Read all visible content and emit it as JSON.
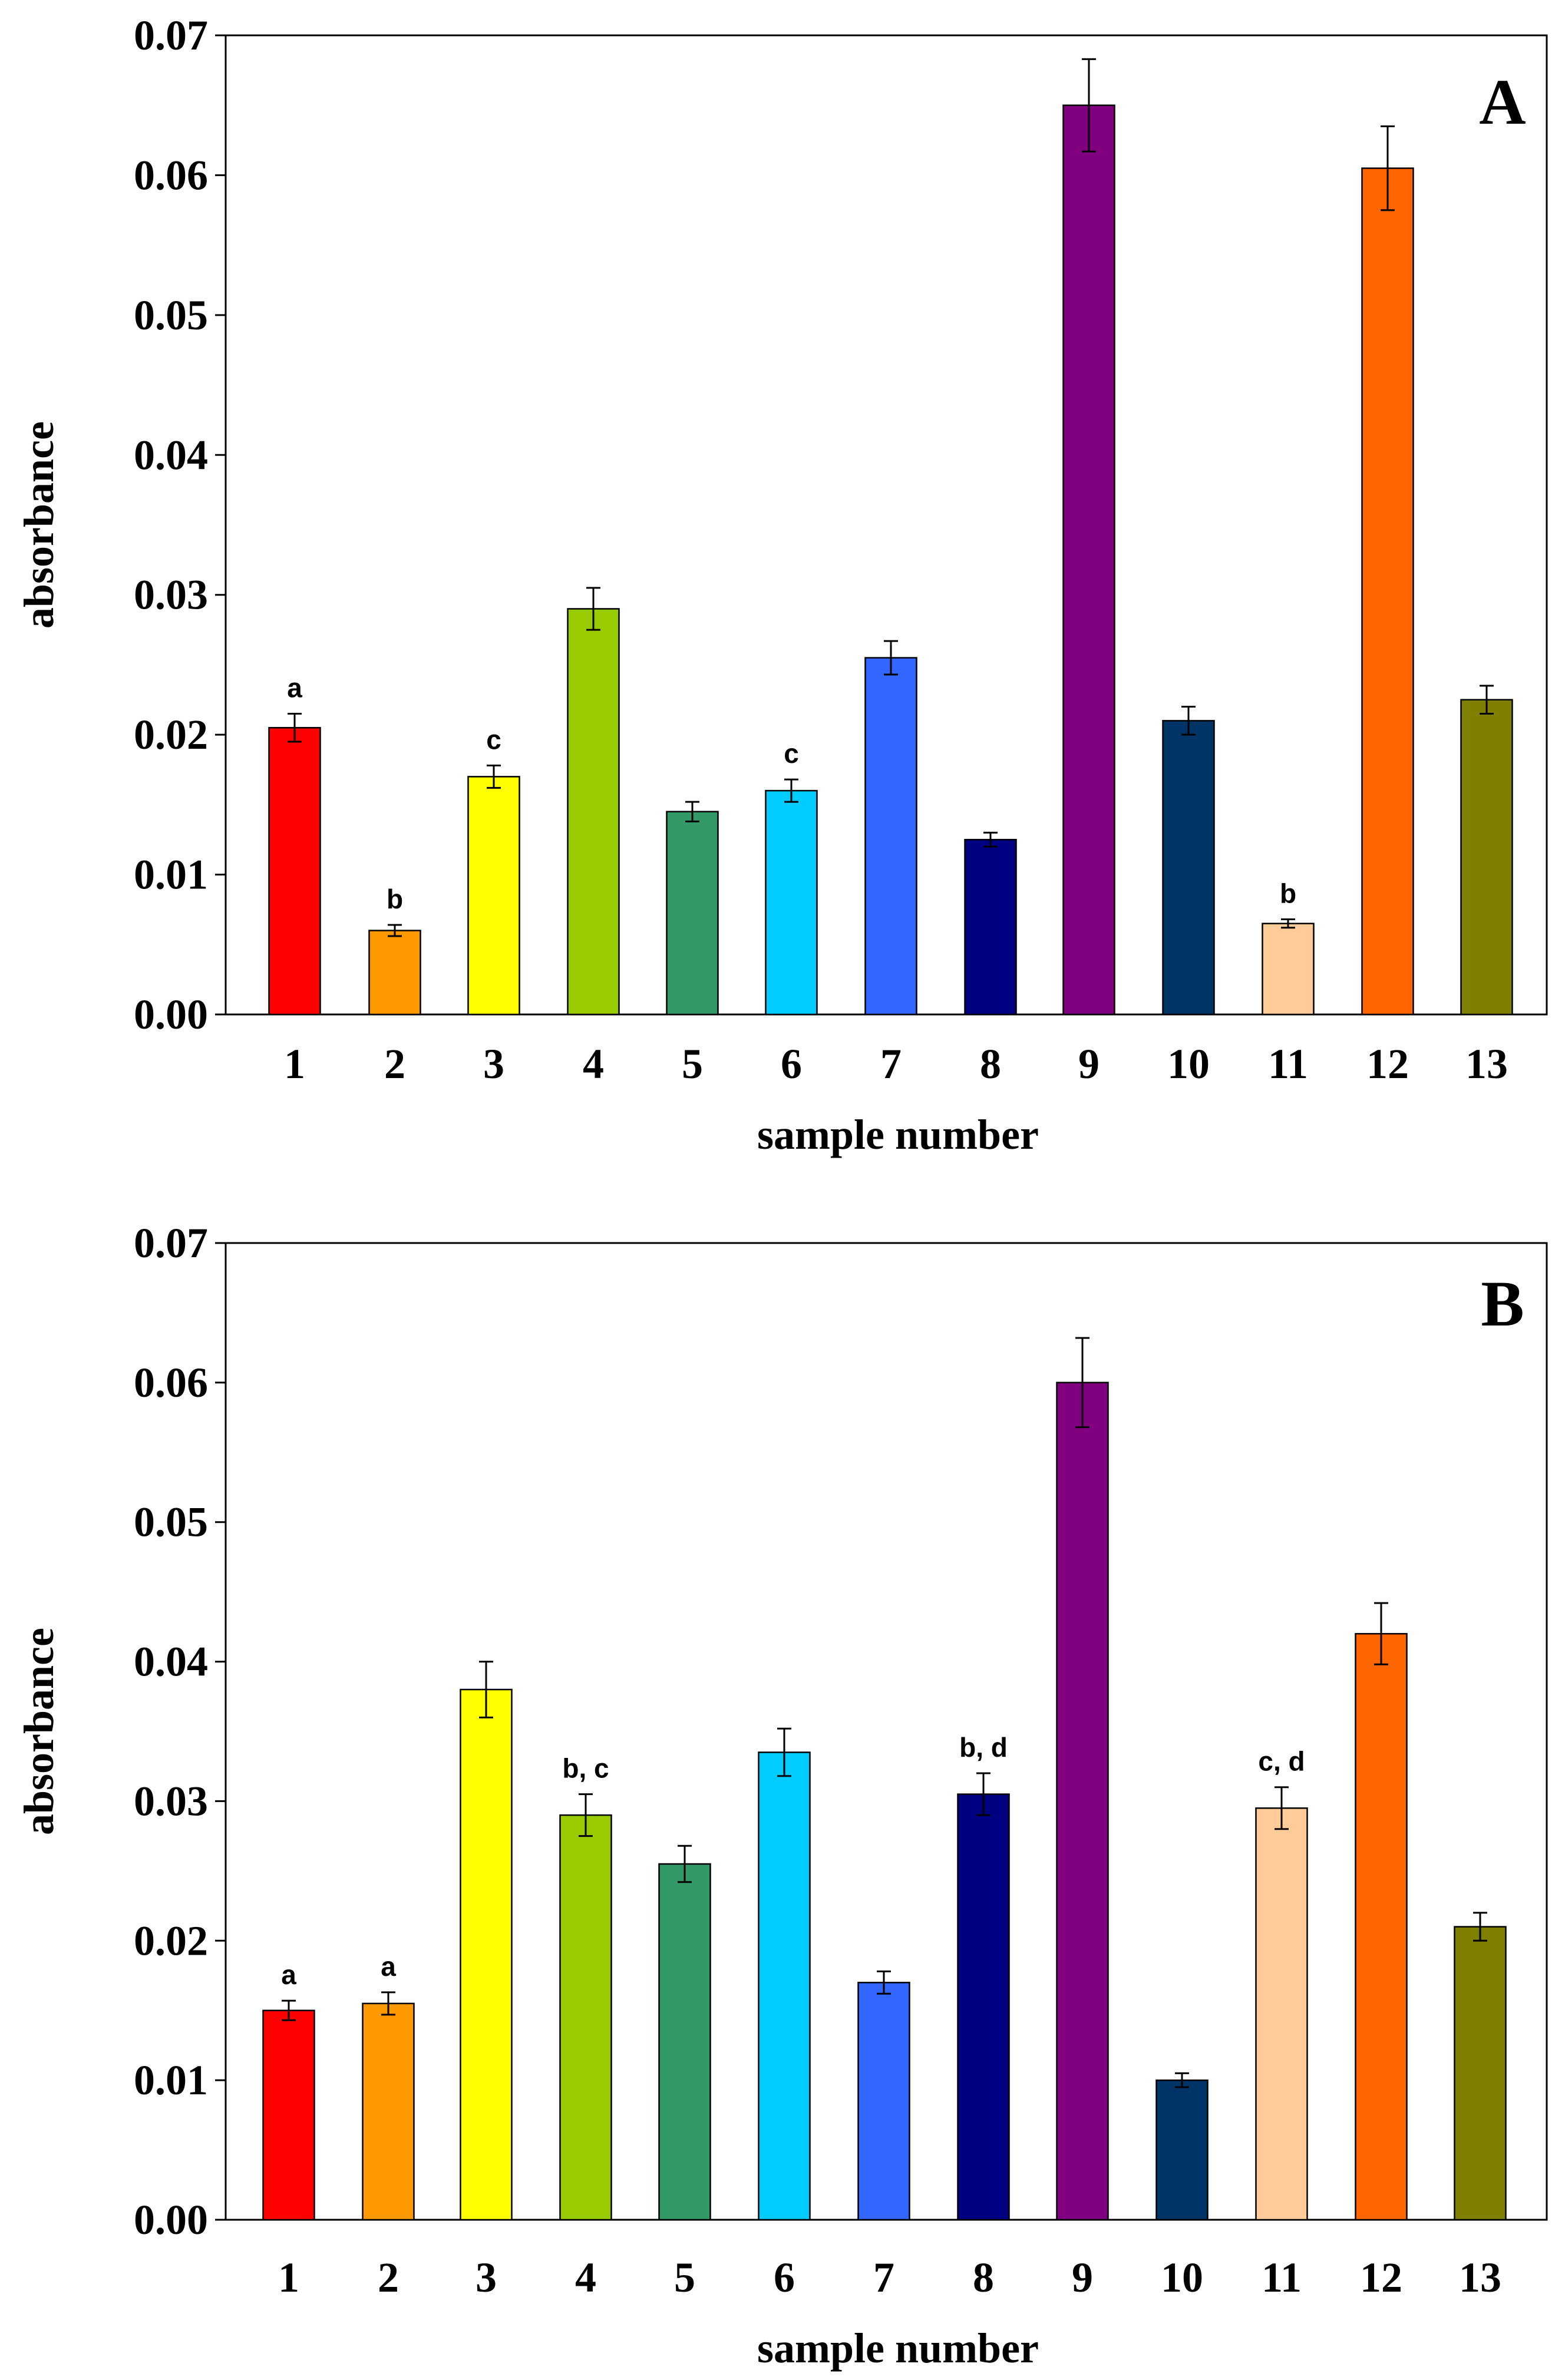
{
  "chart_data": [
    {
      "type": "bar",
      "panel": "A",
      "xlabel": "sample number",
      "ylabel": "absorbance",
      "ylim": [
        0,
        0.07
      ],
      "yticks": [
        "0.00",
        "0.01",
        "0.02",
        "0.03",
        "0.04",
        "0.05",
        "0.06",
        "0.07"
      ],
      "categories": [
        "1",
        "2",
        "3",
        "4",
        "5",
        "6",
        "7",
        "8",
        "9",
        "10",
        "11",
        "12",
        "13"
      ],
      "values": [
        0.0205,
        0.006,
        0.017,
        0.029,
        0.0145,
        0.016,
        0.0255,
        0.0125,
        0.065,
        0.021,
        0.0065,
        0.0605,
        0.0225
      ],
      "errors": [
        0.001,
        0.0004,
        0.0008,
        0.0015,
        0.0007,
        0.0008,
        0.0012,
        0.0005,
        0.0033,
        0.001,
        0.0003,
        0.003,
        0.001
      ],
      "annotations": [
        "a",
        "b",
        "c",
        "",
        "",
        "c",
        "",
        "",
        "",
        "",
        "b",
        "",
        ""
      ],
      "colors": [
        "#ff0000",
        "#ff9900",
        "#ffff00",
        "#99cc00",
        "#339966",
        "#00ccff",
        "#3366ff",
        "#000080",
        "#800080",
        "#003366",
        "#ffcc99",
        "#ff6600",
        "#808000"
      ],
      "grid": false
    },
    {
      "type": "bar",
      "panel": "B",
      "xlabel": "sample number",
      "ylabel": "absorbance",
      "ylim": [
        0,
        0.07
      ],
      "yticks": [
        "0.00",
        "0.01",
        "0.02",
        "0.03",
        "0.04",
        "0.05",
        "0.06",
        "0.07"
      ],
      "categories": [
        "1",
        "2",
        "3",
        "4",
        "5",
        "6",
        "7",
        "8",
        "9",
        "10",
        "11",
        "12",
        "13"
      ],
      "values": [
        0.015,
        0.0155,
        0.038,
        0.029,
        0.0255,
        0.0335,
        0.017,
        0.0305,
        0.06,
        0.01,
        0.0295,
        0.042,
        0.021
      ],
      "errors": [
        0.0007,
        0.0008,
        0.002,
        0.0015,
        0.0013,
        0.0017,
        0.0008,
        0.0015,
        0.0032,
        0.0005,
        0.0015,
        0.0022,
        0.001
      ],
      "annotations": [
        "a",
        "a",
        "",
        "b, c",
        "",
        "",
        "",
        "b, d",
        "",
        "",
        "c, d",
        "",
        ""
      ],
      "colors": [
        "#ff0000",
        "#ff9900",
        "#ffff00",
        "#99cc00",
        "#339966",
        "#00ccff",
        "#3366ff",
        "#000080",
        "#800080",
        "#003366",
        "#ffcc99",
        "#ff6600",
        "#808000"
      ],
      "grid": false
    }
  ]
}
